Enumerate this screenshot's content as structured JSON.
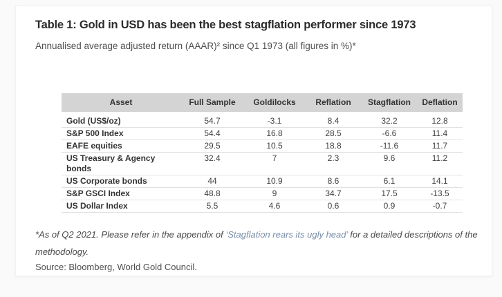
{
  "page": {
    "background_color": "#fafafa",
    "card_background_color": "#ffffff"
  },
  "header": {
    "title": "Table 1: Gold in USD has been the best stagflation performer since 1973",
    "subtitle": "Annualised average adjusted return (AAAR)² since Q1 1973 (all figures in %)*"
  },
  "table": {
    "header_background_color": "#d4d4d4",
    "columns": [
      "Asset",
      "Full Sample",
      "Goldilocks",
      "Reflation",
      "Stagflation",
      "Deflation"
    ],
    "rows": [
      {
        "asset": "Gold (US$/oz)",
        "values": [
          "54.7",
          "-3.1",
          "8.4",
          "32.2",
          "12.8"
        ]
      },
      {
        "asset": "S&P 500 Index",
        "values": [
          "54.4",
          "16.8",
          "28.5",
          "-6.6",
          "11.4"
        ]
      },
      {
        "asset": "EAFE equities",
        "values": [
          "29.5",
          "10.5",
          "18.8",
          "-11.6",
          "11.7"
        ]
      },
      {
        "asset": "US Treasury & Agency bonds",
        "values": [
          "32.4",
          "7",
          "2.3",
          "9.6",
          "11.2"
        ]
      },
      {
        "asset": "US Corporate bonds",
        "values": [
          "44",
          "10.9",
          "8.6",
          "6.1",
          "14.1"
        ]
      },
      {
        "asset": "S&P GSCI Index",
        "values": [
          "48.8",
          "9",
          "34.7",
          "17.5",
          "-13.5"
        ]
      },
      {
        "asset": "US Dollar Index",
        "values": [
          "5.5",
          "4.6",
          "0.6",
          "0.9",
          "-0.7"
        ]
      }
    ]
  },
  "footnote": {
    "prefix": "*As of Q2 2021. Please refer in the appendix of ",
    "link_text": "‘Stagflation rears its ugly head’",
    "suffix": " for a detailed descriptions of the methodology.",
    "link_color": "#7a8fa8"
  },
  "source": "Source: Bloomberg, World Gold Council."
}
